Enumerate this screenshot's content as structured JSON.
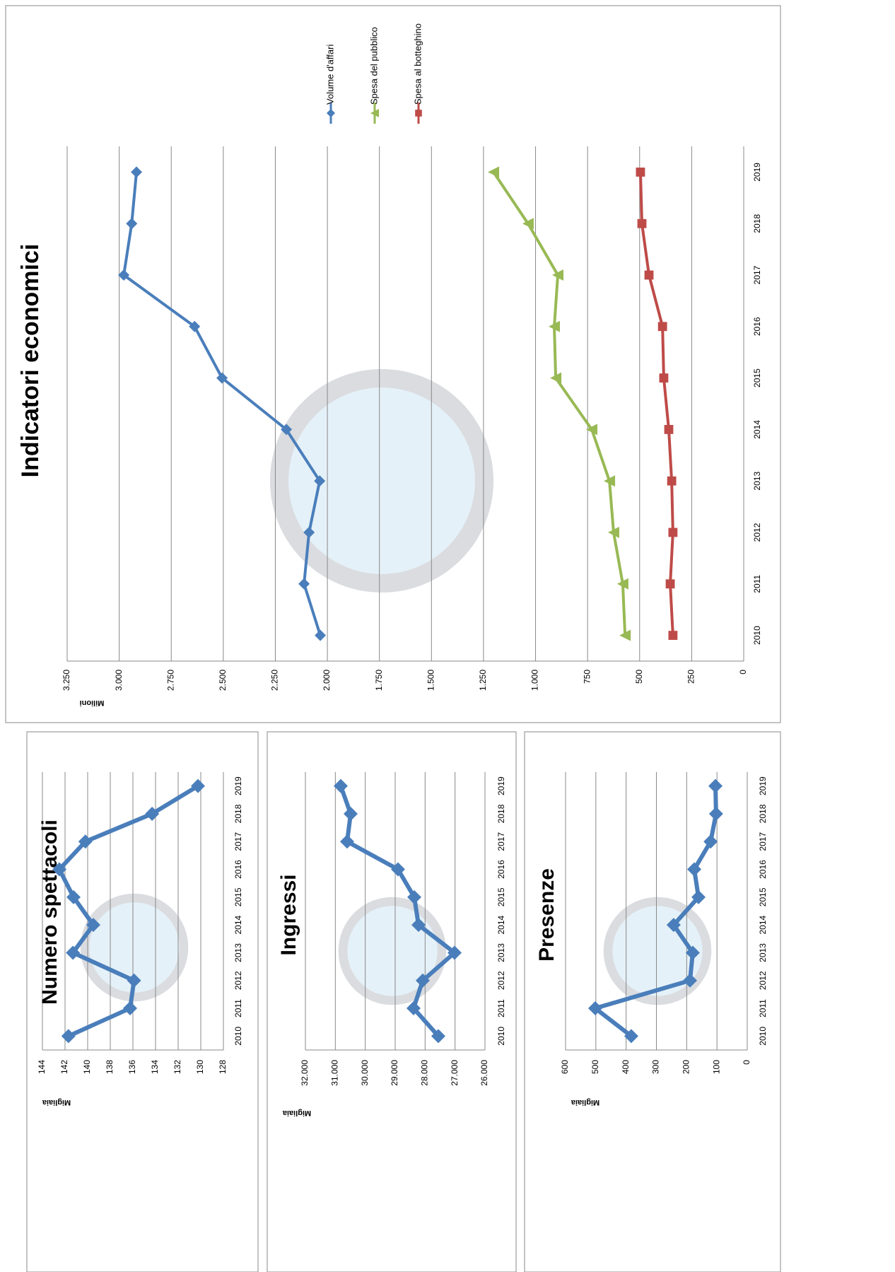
{
  "chart_data": [
    {
      "type": "line",
      "title": "Indicatori economici",
      "y_label": "Milioni",
      "categories": [
        "2010",
        "2011",
        "2012",
        "2013",
        "2014",
        "2015",
        "2016",
        "2017",
        "2018",
        "2019"
      ],
      "series": [
        {
          "name": "Volume d'affari",
          "color": "#4a7ebb",
          "marker": "diamond",
          "values": [
            2034,
            2112,
            2088,
            2037,
            2197,
            2506,
            2638,
            2978,
            2940,
            2917
          ]
        },
        {
          "name": "Spesa del pubblico",
          "color": "#98b954",
          "marker": "triangle",
          "values": [
            570,
            581,
            625,
            645,
            730,
            903,
            910,
            893,
            1036,
            1202
          ]
        },
        {
          "name": "Spesa al botteghino",
          "color": "#be4b48",
          "marker": "square",
          "values": [
            340,
            353,
            340,
            346,
            360,
            384,
            390,
            455,
            489,
            496
          ]
        }
      ],
      "ylim": [
        0,
        3250
      ],
      "yticks": [
        0,
        250,
        500,
        750,
        {
          "value": 1000,
          "label": "1.000"
        },
        {
          "value": 1250,
          "label": "1.250"
        },
        {
          "value": 1500,
          "label": "1.500"
        },
        {
          "value": 1750,
          "label": "1.750"
        },
        {
          "value": 2000,
          "label": "2.000"
        },
        {
          "value": 2250,
          "label": "2.250"
        },
        {
          "value": 2500,
          "label": "2.500"
        },
        {
          "value": 2750,
          "label": "2.750"
        },
        {
          "value": 3000,
          "label": "3.000"
        },
        {
          "value": 3250,
          "label": "3.250"
        }
      ],
      "grid": true,
      "legend": "right"
    },
    {
      "type": "line",
      "title": "Numero spettacoli",
      "y_label": "Migliaia",
      "categories": [
        "2010",
        "2011",
        "2012",
        "2013",
        "2014",
        "2015",
        "2016",
        "2017",
        "2018",
        "2019"
      ],
      "values": [
        141.7,
        136.25,
        135.9,
        141.3,
        139.5,
        141.25,
        142.5,
        140.2,
        134.3,
        130.25
      ],
      "color": "#4a7ebb",
      "ylim": [
        128,
        144
      ],
      "yticks": [
        128,
        130,
        132,
        134,
        136,
        138,
        140,
        142,
        144
      ],
      "grid": true
    },
    {
      "type": "line",
      "title": "Ingressi",
      "y_label": "Migliaia",
      "categories": [
        "2010",
        "2011",
        "2012",
        "2013",
        "2014",
        "2015",
        "2016",
        "2017",
        "2018",
        "2019"
      ],
      "values": [
        27559,
        28386,
        28079,
        27016,
        28220,
        28362,
        28906,
        30606,
        30488,
        30819
      ],
      "color": "#4a7ebb",
      "ylim": [
        26000,
        32000
      ],
      "yticks": [
        {
          "value": 26000,
          "label": "26.000"
        },
        {
          "value": 27000,
          "label": "27.000"
        },
        {
          "value": 28000,
          "label": "28.000"
        },
        {
          "value": 29000,
          "label": "29.000"
        },
        {
          "value": 30000,
          "label": "30.000"
        },
        {
          "value": 31000,
          "label": "31.000"
        },
        {
          "value": 32000,
          "label": "32.000"
        }
      ],
      "grid": true
    },
    {
      "type": "line",
      "title": "Presenze",
      "y_label": "Migliaia",
      "categories": [
        "2010",
        "2011",
        "2012",
        "2013",
        "2014",
        "2015",
        "2016",
        "2017",
        "2018",
        "2019"
      ],
      "values": [
        383,
        502,
        189,
        180,
        243,
        161,
        175,
        121,
        103,
        105
      ],
      "color": "#4a7ebb",
      "ylim": [
        0,
        600
      ],
      "yticks": [
        0,
        100,
        200,
        300,
        400,
        500,
        600
      ],
      "grid": true
    }
  ]
}
